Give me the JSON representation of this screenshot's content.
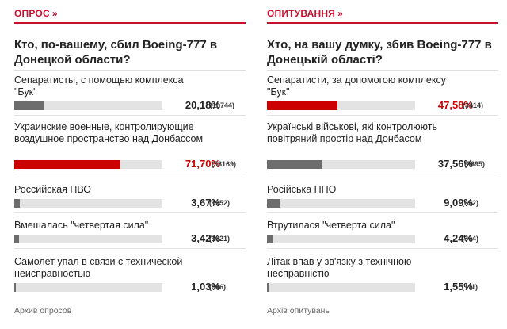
{
  "left": {
    "heading": "ОПРОС",
    "arrows": "»",
    "question": "Кто, по-вашему, сбил Boeing-777 в Донецкой области?",
    "archive": "Архив опросов",
    "options": [
      {
        "label": "Сепаратисты, с помощью комплекса \"Бук\"",
        "percent": "20,18%",
        "count": "(10744)",
        "fill": 0.2018,
        "lead": false
      },
      {
        "label": "Украинские военные, контролирующие воздушное пространство над Донбассом",
        "percent": "71,70%",
        "count": "(38169)",
        "fill": 0.717,
        "lead": true
      },
      {
        "label": "Российская ПВО",
        "percent": "3,67%",
        "count": "(1952)",
        "fill": 0.0367,
        "lead": false
      },
      {
        "label": "Вмешалась \"четвертая сила\"",
        "percent": "3,42%",
        "count": "(1821)",
        "fill": 0.0342,
        "lead": false
      },
      {
        "label": "Самолет упал в связи с технической неисправностью",
        "percent": "1,03%",
        "count": "(546)",
        "fill": 0.0103,
        "lead": false
      }
    ]
  },
  "right": {
    "heading": "ОПИТУВАННЯ",
    "arrows": "»",
    "question": "Хто, на вашу думку, збив Boeing-777 в Донецькій області?",
    "archive": "Архів опитувань",
    "options": [
      {
        "label": "Сепаратисти, за допомогою комплексу \"Бук\"",
        "percent": "47,58%",
        "count": "(3414)",
        "fill": 0.4758,
        "lead": true
      },
      {
        "label": "Українські військові, які контролюють повітряний простір над Донбасом",
        "percent": "37,56%",
        "count": "(2695)",
        "fill": 0.3756,
        "lead": false
      },
      {
        "label": "Російська ППО",
        "percent": "9,09%",
        "count": "(652)",
        "fill": 0.0909,
        "lead": false
      },
      {
        "label": "Втрутилася \"четверта сила\"",
        "percent": "4,24%",
        "count": "(304)",
        "fill": 0.0424,
        "lead": false
      },
      {
        "label": "Літак впав у зв'язку з технічною несправністю",
        "percent": "1,55%",
        "count": "(111)",
        "fill": 0.0155,
        "lead": false
      }
    ]
  },
  "colors": {
    "accent": "#c8102e",
    "lead_bar": "#cc0000",
    "bar": "#6d6d6d",
    "track": "#e3e3e3"
  }
}
